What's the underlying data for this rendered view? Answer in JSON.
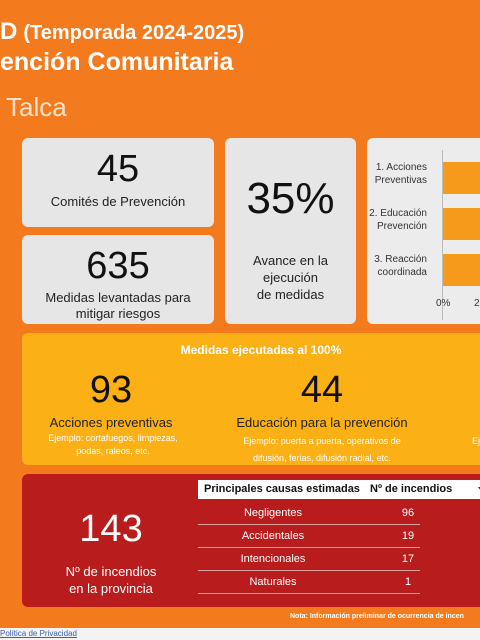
{
  "header": {
    "title_letter": "D",
    "title_season": "(Temporada 2024-2025)",
    "subtitle": "ención Comunitaria",
    "location": "Talca"
  },
  "kpis": {
    "comites": {
      "value": "45",
      "label": "Comités de Prevención"
    },
    "medidas": {
      "value": "635",
      "label_line1": "Medidas levantadas para",
      "label_line2": "mitigar riesgos"
    },
    "avance": {
      "value": "35%",
      "label_line1": "Avance en la",
      "label_line2": "ejecución",
      "label_line3": "de medidas"
    }
  },
  "chart_data": {
    "type": "bar",
    "orientation": "horizontal",
    "categories": [
      "1. Acciones Preventivas",
      "2. Educación Prevención",
      "3. Reacción coordinada"
    ],
    "category_lines": [
      [
        "1. Acciones",
        "Preventivas"
      ],
      [
        "2. Educación",
        "Prevención"
      ],
      [
        "3. Reacción",
        "coordinada"
      ]
    ],
    "tick_labels": [
      "0%",
      "2"
    ],
    "bar_color": "#f59a1b"
  },
  "medidas_ejecutadas": {
    "title": "Medidas ejecutadas al 100%",
    "items": [
      {
        "value": "93",
        "label": "Acciones preventivas",
        "example_line1": "Ejemplo: cortafuegos, limpiezas,",
        "example_line2": "podas, raleos, etc."
      },
      {
        "value": "44",
        "label": "Educación para la prevención",
        "example_line1": "Ejemplo: puerta a puerta, operativos de",
        "example_line2": "difusión, ferias, difusión radial, etc."
      }
    ],
    "clipped_text": "Ej"
  },
  "incendios": {
    "value": "143",
    "label_line1": "Nº de incendios",
    "label_line2": "en la provincia",
    "table": {
      "headers": [
        "Principales causas estimadas",
        "Nº de incendios"
      ],
      "sort_icon": "sort-desc-icon",
      "rows": [
        {
          "causa": "Negligentes",
          "n": "96"
        },
        {
          "causa": "Accidentales",
          "n": "19"
        },
        {
          "causa": "Intencionales",
          "n": "17"
        },
        {
          "causa": "Naturales",
          "n": "1"
        }
      ]
    }
  },
  "note": "Nota: Información preliminar de ocurrencia de incen",
  "footer": {
    "privacy_link": "Política de Privacidad"
  },
  "colors": {
    "background": "#f47a1e",
    "card": "#e6e6e6",
    "yellow": "#fbb016",
    "red": "#b81c1c"
  }
}
